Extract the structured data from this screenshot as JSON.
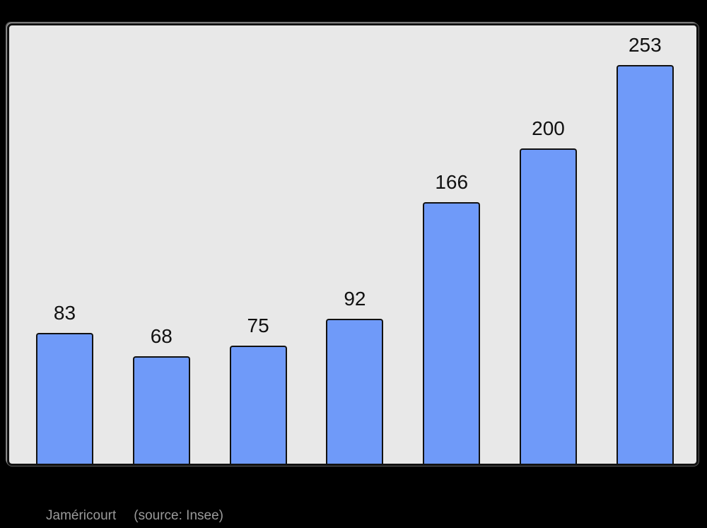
{
  "page": {
    "background": "#000000"
  },
  "chart_data": {
    "type": "bar",
    "values": [
      83,
      68,
      75,
      92,
      166,
      200,
      253
    ],
    "bar_labels": [
      "83",
      "68",
      "75",
      "92",
      "166",
      "200",
      "253"
    ],
    "title": "",
    "xlabel": "",
    "ylabel": "",
    "ylim": [
      0,
      278
    ],
    "grid": false,
    "legend": false,
    "x_tick_labels_visible": false,
    "y_tick_labels_visible": false,
    "colors": {
      "bar_fill": "#6f9af9",
      "bar_border": "#111111",
      "plot_background": "#e8e8e8",
      "plot_border": "#111111",
      "value_label_text": "#111111"
    }
  },
  "caption": {
    "name": "Jaméricourt",
    "source": "(source: Insee)",
    "color": "#9a9a9a"
  }
}
